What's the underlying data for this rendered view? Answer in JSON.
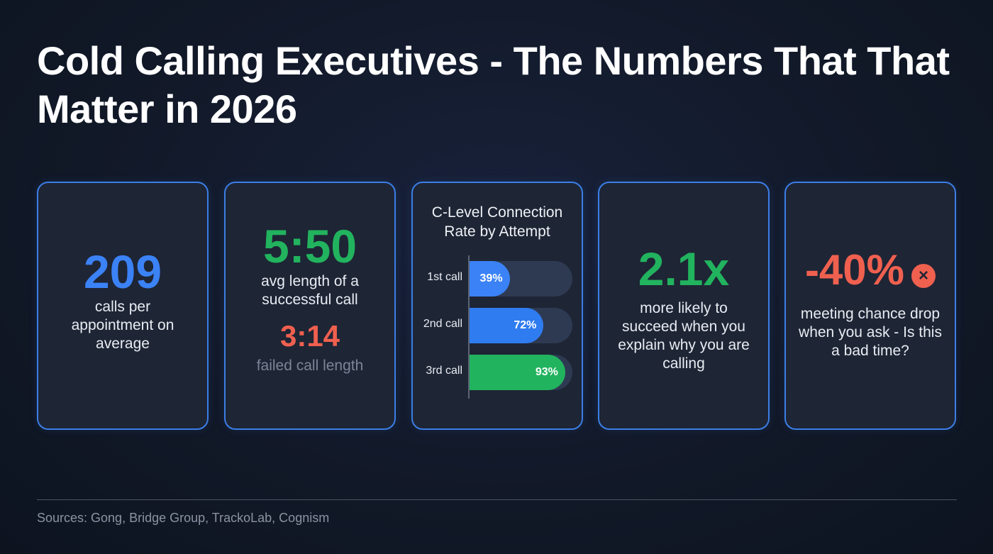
{
  "title": "Cold Calling Executives - The Numbers That That Matter in 2026",
  "cards": [
    {
      "value": "209",
      "desc": "calls per appointment on average"
    },
    {
      "value": "5:50",
      "desc": "avg length of a successful call",
      "value2": "3:14",
      "desc2": "failed call length"
    },
    {
      "chart": true
    },
    {
      "value": "2.1x",
      "desc": "more likely to succeed when you explain why you are calling"
    },
    {
      "value": "-40%",
      "desc": "meeting chance drop when you ask - Is this a bad time?",
      "icon": "close-circle-icon",
      "icon_glyph": "×"
    }
  ],
  "chart_data": {
    "type": "bar",
    "orientation": "horizontal",
    "title": "C-Level Connection Rate by Attempt",
    "categories": [
      "1st call",
      "2nd call",
      "3rd call"
    ],
    "values": [
      39,
      72,
      93
    ],
    "labels": [
      "39%",
      "72%",
      "93%"
    ],
    "colors": [
      "#3b82f6",
      "#2f7cf0",
      "#22b35e"
    ],
    "xlim": [
      0,
      100
    ]
  },
  "sources": "Sources: Gong, Bridge Group, TrackoLab, Cognism"
}
